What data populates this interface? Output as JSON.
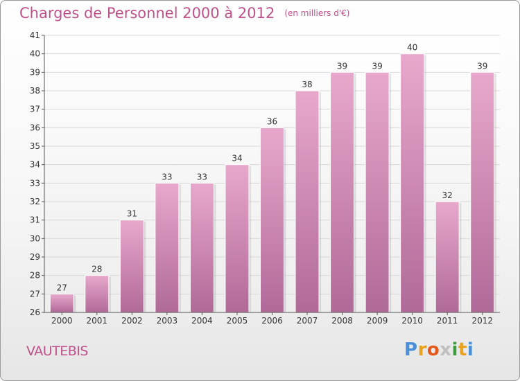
{
  "header": {
    "title": "Charges de Personnel 2000 à 2012",
    "unit": "(en milliers d'€)"
  },
  "footer": {
    "place": "VAUTEBIS",
    "logo_letters": [
      "P",
      "r",
      "o",
      "x",
      "i",
      "t",
      "i"
    ]
  },
  "colors": {
    "title": "#c0508a",
    "bar_top": "#e8a8cc",
    "bar_bottom": "#b06a98",
    "grid": "#d8d8d8",
    "axis": "#555555"
  },
  "chart_data": {
    "type": "bar",
    "title": "Charges de Personnel 2000 à 2012",
    "subtitle": "(en milliers d'€)",
    "xlabel": "",
    "ylabel": "",
    "categories": [
      "2000",
      "2001",
      "2002",
      "2003",
      "2004",
      "2005",
      "2006",
      "2007",
      "2008",
      "2009",
      "2010",
      "2011",
      "2012"
    ],
    "values": [
      27,
      28,
      31,
      33,
      33,
      34,
      36,
      38,
      39,
      39,
      40,
      32,
      39
    ],
    "ylim": [
      26,
      41
    ],
    "yticks": [
      26,
      27,
      28,
      29,
      30,
      31,
      32,
      33,
      34,
      35,
      36,
      37,
      38,
      39,
      40,
      41
    ],
    "grid": true,
    "data_labels": true
  }
}
